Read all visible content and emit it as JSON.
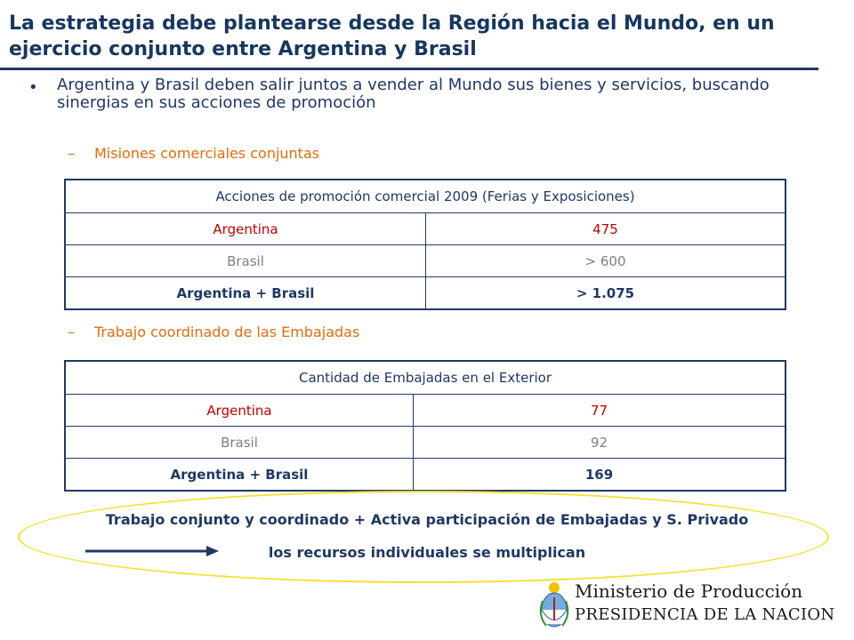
{
  "title": "La estrategia debe plantearse desde la Región hacia el Mundo, en un ejercicio conjunto entre Argentina y Brasil",
  "bullet": "Argentina y Brasil deben salir juntos a vender al Mundo sus bienes y servicios, buscando sinergias en sus acciones de promoción",
  "sections": [
    {
      "dash": "–",
      "heading": "Misiones comerciales conjuntas",
      "table": {
        "header": "Acciones de promoción comercial 2009 (Ferias y Exposiciones)",
        "rows": [
          {
            "label": "Argentina",
            "value": "475"
          },
          {
            "label": "Brasil",
            "value": "> 600"
          },
          {
            "label": "Argentina + Brasil",
            "value": "> 1.075"
          }
        ]
      }
    },
    {
      "dash": "–",
      "heading": "Trabajo coordinado de las Embajadas",
      "table": {
        "header": "Cantidad de Embajadas en el Exterior",
        "rows": [
          {
            "label": "Argentina",
            "value": "77"
          },
          {
            "label": "Brasil",
            "value": "92"
          },
          {
            "label": "Argentina + Brasil",
            "value": "169"
          }
        ]
      }
    }
  ],
  "summary": {
    "line1": "Trabajo conjunto y coordinado + Activa participación de Embajadas y S. Privado",
    "line2": "los recursos individuales se multiplican"
  },
  "footer": {
    "ministry": "Ministerio de Producción",
    "presidency": "PRESIDENCIA DE LA NACION",
    "icon": "argentina-coat-of-arms-icon"
  },
  "colors": {
    "title": "#17375e",
    "accent_orange": "#e36c0a",
    "argentina_red": "#c00000",
    "brasil_gray": "#7f7f7f",
    "ellipse_yellow": "#f5e033"
  }
}
